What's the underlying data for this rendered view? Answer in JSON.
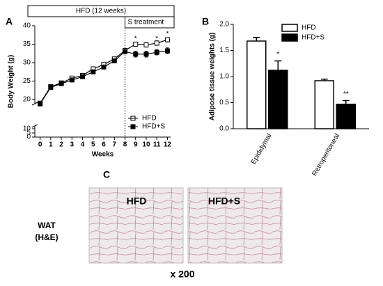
{
  "chart_data": [
    {
      "type": "line",
      "panel": "A",
      "banner": "HFD (12 weeks)",
      "phase_label": "S treatment",
      "phase_start": 8,
      "xlabel": "Weeks",
      "ylabel": "Body Weight (g)",
      "x": [
        0,
        1,
        2,
        3,
        4,
        5,
        6,
        7,
        8,
        9,
        10,
        11,
        12
      ],
      "xlim": [
        -0.5,
        12.3
      ],
      "xticks": [
        0,
        1,
        2,
        3,
        4,
        5,
        6,
        7,
        8,
        9,
        10,
        11,
        12
      ],
      "ylim": [
        0,
        40
      ],
      "axis_break": [
        10,
        20
      ],
      "yticks": [
        0,
        5,
        10,
        20,
        25,
        30,
        35,
        40
      ],
      "series": [
        {
          "name": "HFD",
          "color": "#000000",
          "marker_fill": "#ffffff",
          "values": [
            19,
            23.5,
            24.5,
            25.8,
            26.5,
            28.3,
            29.5,
            31,
            33.3,
            35,
            34.8,
            35.3,
            36.2
          ],
          "errors": [
            0.5,
            0.4,
            0.4,
            0.4,
            0.4,
            0.4,
            0.4,
            0.4,
            0.5,
            0.6,
            0.6,
            0.6,
            0.6
          ]
        },
        {
          "name": "HFD+S",
          "color": "#000000",
          "marker_fill": "#000000",
          "values": [
            18.8,
            23.3,
            24.3,
            25.3,
            26.2,
            27.5,
            28.8,
            30.5,
            33,
            32.3,
            32.3,
            32.8,
            33.2
          ],
          "errors": [
            0.5,
            0.4,
            0.4,
            0.4,
            0.4,
            0.4,
            0.4,
            0.4,
            0.5,
            0.8,
            0.8,
            0.7,
            0.8
          ]
        }
      ],
      "annotations": [
        {
          "text": "*",
          "x": 9
        },
        {
          "text": "*",
          "x": 11
        },
        {
          "text": "*",
          "x": 12
        }
      ]
    },
    {
      "type": "bar",
      "panel": "B",
      "ylabel": "Adipose tissue weights (g)",
      "categories": [
        "Epididymal",
        "Retroperitoneal"
      ],
      "ylim": [
        0,
        2
      ],
      "yticks": [
        {
          "value": 0,
          "label": "0.0"
        },
        0.5,
        {
          "value": 1,
          "label": "1.0"
        },
        1.5,
        {
          "value": 2,
          "label": "2.0"
        }
      ],
      "series": [
        {
          "name": "HFD",
          "color": "#ffffff",
          "values": [
            1.68,
            0.92
          ],
          "errors": [
            0.07,
            0.03
          ]
        },
        {
          "name": "HFD+S",
          "color": "#000000",
          "values": [
            1.12,
            0.47
          ],
          "errors": [
            0.18,
            0.07
          ],
          "value_labels": [
            "*",
            "**"
          ]
        }
      ]
    }
  ],
  "panel_c": {
    "panel": "C",
    "image_titles": [
      "HFD",
      "HFD+S"
    ],
    "row_label": [
      "WAT",
      "(H&E)"
    ],
    "magnification": "x 200"
  }
}
